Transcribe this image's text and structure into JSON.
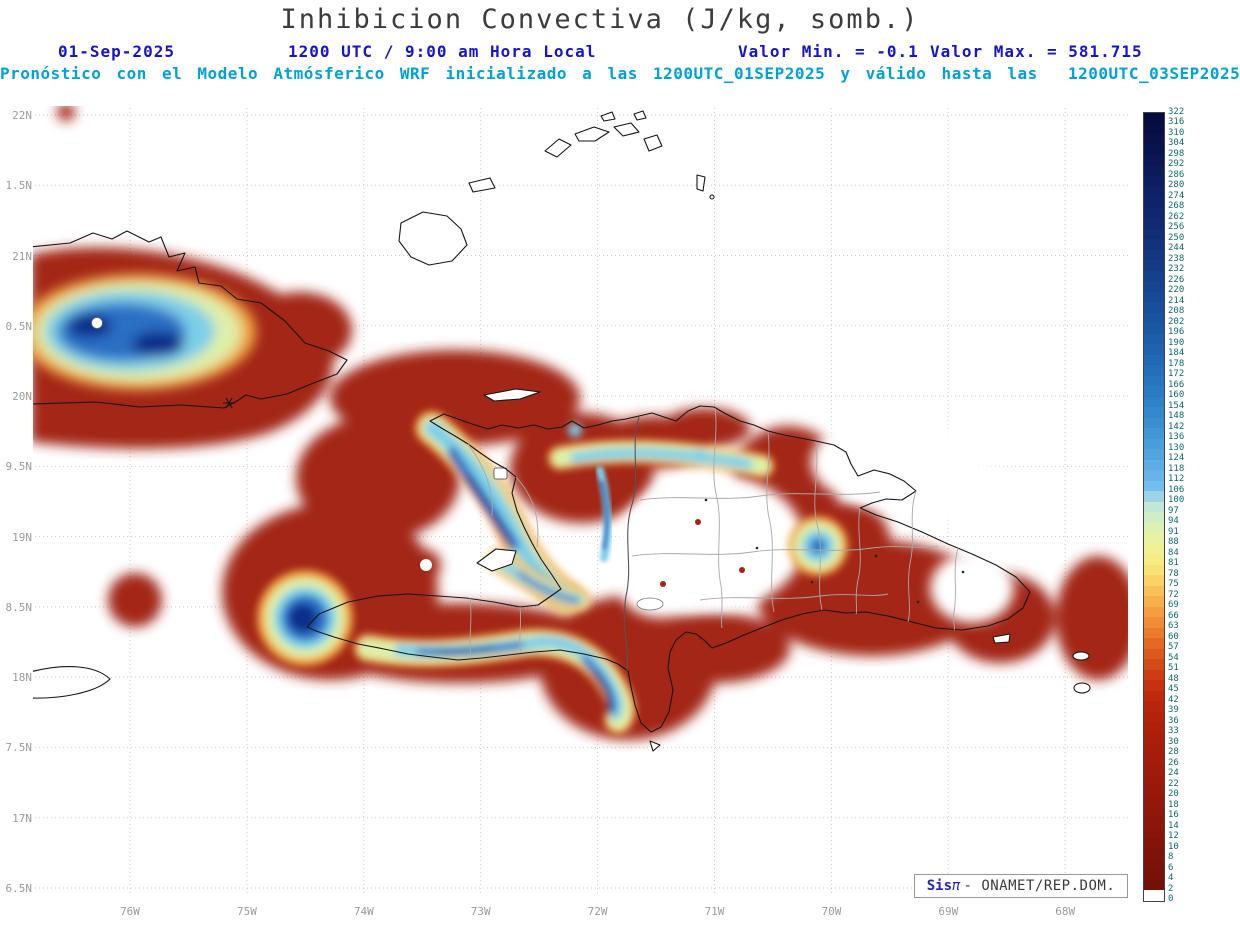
{
  "title": "Inhibicion Convectiva (J/kg, somb.)",
  "header": {
    "date": "01-Sep-2025",
    "time": "1200 UTC / 9:00 am Hora Local",
    "min_label": "Valor Min. = -0.1",
    "max_label": "Valor Max. = 581.715",
    "forecast_line": "Pronóstico con el Modelo Atmósferico WRF inicializado a las 1200UTC_01SEP2025 y válido hasta las  1200UTC_03SEP2025"
  },
  "map": {
    "lat_labels": [
      "22N",
      "1.5N",
      "21N",
      "0.5N",
      "20N",
      "9.5N",
      "19N",
      "8.5N",
      "18N",
      "7.5N",
      "17N",
      "6.5N"
    ],
    "lon_labels": [
      "76W",
      "75W",
      "74W",
      "73W",
      "72W",
      "71W",
      "70W",
      "69W",
      "68W"
    ]
  },
  "colorbar": {
    "levels": [
      "322",
      "316",
      "310",
      "304",
      "298",
      "292",
      "286",
      "280",
      "274",
      "268",
      "262",
      "256",
      "250",
      "244",
      "238",
      "232",
      "226",
      "220",
      "214",
      "208",
      "202",
      "196",
      "190",
      "184",
      "178",
      "172",
      "166",
      "160",
      "154",
      "148",
      "142",
      "136",
      "130",
      "124",
      "118",
      "112",
      "106",
      "100",
      "97",
      "94",
      "91",
      "88",
      "84",
      "81",
      "78",
      "75",
      "72",
      "69",
      "66",
      "63",
      "60",
      "57",
      "54",
      "51",
      "48",
      "45",
      "42",
      "39",
      "36",
      "33",
      "30",
      "28",
      "26",
      "24",
      "22",
      "20",
      "18",
      "16",
      "14",
      "12",
      "10",
      "8",
      "6",
      "4",
      "2",
      "0"
    ],
    "colors": [
      "#060b40",
      "#070e45",
      "#08114a",
      "#09144f",
      "#0a1754",
      "#0b1a59",
      "#0c1e5e",
      "#0d2163",
      "#0e2468",
      "#0f286d",
      "#102b72",
      "#112f77",
      "#12337c",
      "#133781",
      "#143b86",
      "#15408b",
      "#164490",
      "#174995",
      "#184e9a",
      "#19539f",
      "#1b58a4",
      "#1d5ea9",
      "#1f63ae",
      "#2169b3",
      "#246fb8",
      "#2775bd",
      "#2b7bc2",
      "#2f82c7",
      "#3488cc",
      "#3a8fd1",
      "#4196d6",
      "#499ddb",
      "#52a4e0",
      "#5cace5",
      "#67b4ea",
      "#74bdef",
      "#9bd4e8",
      "#c0e8d4",
      "#cfeec4",
      "#ddf1b2",
      "#e8f2a2",
      "#f0f193",
      "#f5ec84",
      "#f8e176",
      "#f9d366",
      "#f9c258",
      "#f7b04b",
      "#f49e3f",
      "#f08c35",
      "#ea7a2c",
      "#e46a24",
      "#dd5a1e",
      "#d54b18",
      "#cd3d13",
      "#c6320f",
      "#bf2a0d",
      "#b9250c",
      "#b4220c",
      "#af200c",
      "#ab1e0c",
      "#a71d0c",
      "#a31c0c",
      "#9f1b0c",
      "#9b1a0b",
      "#97190b",
      "#93180b",
      "#8f170b",
      "#8b160a",
      "#87150a",
      "#83140a",
      "#7f1309",
      "#7b1209",
      "#771109",
      "#731008",
      "#ffffff"
    ]
  },
  "branding": {
    "sis": "Sis",
    "pi": "π",
    "rest": "- ONAMET/REP.DOM."
  },
  "chart_data": {
    "type": "heatmap",
    "title": "Inhibicion Convectiva (J/kg, somb.)",
    "units": "J/kg",
    "valid_date": "01-Sep-2025",
    "valid_time": "1200 UTC / 9:00 am Hora Local",
    "value_min": -0.1,
    "value_max": 581.715,
    "model": "WRF",
    "init": "1200UTC_01SEP2025",
    "valid_until": "1200UTC_03SEP2025",
    "x_ticks": [
      "76W",
      "75W",
      "74W",
      "73W",
      "72W",
      "71W",
      "70W",
      "69W",
      "68W"
    ],
    "y_ticks": [
      "22N",
      "1.5N",
      "21N",
      "0.5N",
      "20N",
      "9.5N",
      "19N",
      "8.5N",
      "18N",
      "7.5N",
      "17N",
      "6.5N"
    ],
    "colorbar_levels": [
      322,
      316,
      310,
      304,
      298,
      292,
      286,
      280,
      274,
      268,
      262,
      256,
      250,
      244,
      238,
      232,
      226,
      220,
      214,
      208,
      202,
      196,
      190,
      184,
      178,
      172,
      166,
      160,
      154,
      148,
      142,
      136,
      130,
      124,
      118,
      112,
      106,
      100,
      97,
      94,
      91,
      88,
      84,
      81,
      78,
      75,
      72,
      69,
      66,
      63,
      60,
      57,
      54,
      51,
      48,
      45,
      42,
      39,
      36,
      33,
      30,
      28,
      26,
      24,
      22,
      20,
      18,
      16,
      14,
      12,
      10,
      8,
      6,
      4,
      2,
      0
    ],
    "legend_position": "right",
    "grid": true,
    "field_summary": [
      {
        "region": "eastern Cuba",
        "value": "broad 10-30 J/kg shading with embedded 150-280 J/kg blue core"
      },
      {
        "region": "seas around Haiti and SW Hispaniola",
        "value": "widespread 10-30 J/kg (dark red)"
      },
      {
        "region": "central Haiti diagonal band",
        "value": "maxima 150-300 J/kg (blue/navy streaks)"
      },
      {
        "region": "offshore SW of Tiburon peninsula",
        "value": "isolated navy maximum ~300 J/kg"
      },
      {
        "region": "southern Barahona / Cabo Beata hook",
        "value": "150-280 J/kg streak"
      },
      {
        "region": "central and eastern Dominican Republic interior",
        "value": "near 0 J/kg (white)"
      },
      {
        "region": "western Puerto Rico edge",
        "value": "10-30 J/kg patch"
      }
    ],
    "source": "Sisπ - ONAMET/REP.DOM."
  }
}
